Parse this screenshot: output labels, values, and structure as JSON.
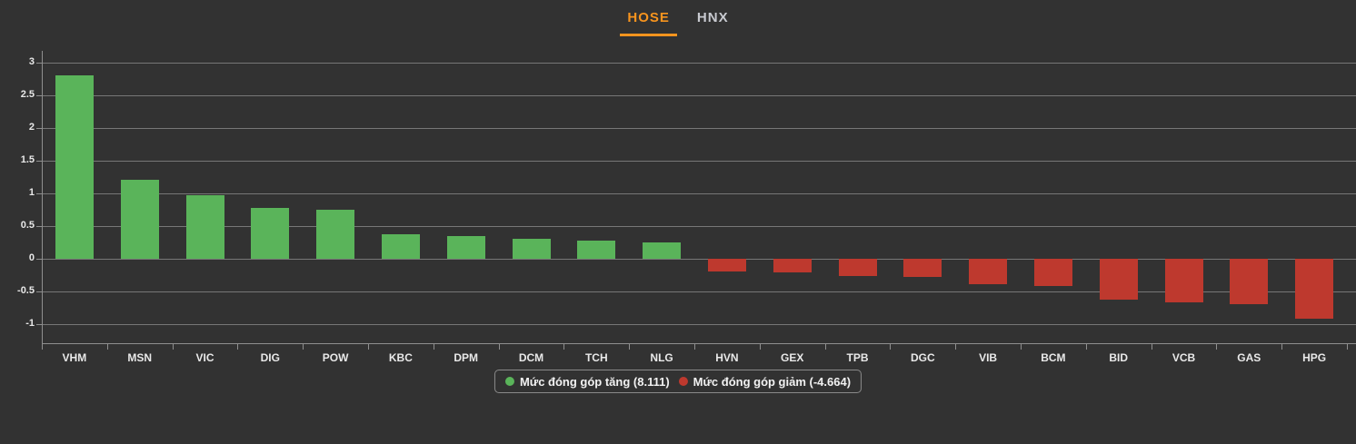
{
  "tabs": {
    "hose": "HOSE",
    "hnx": "HNX",
    "active_tab": "HOSE"
  },
  "legend": {
    "increase": "Mức đóng góp tăng (8.111)",
    "decrease": "Mức đóng góp giảm (-4.664)"
  },
  "colors": {
    "background": "#323232",
    "positive": "#5ab45a",
    "negative": "#be392e",
    "accent_orange": "#f7941e",
    "gridline": "#8f8f8f",
    "axis_text": "#e9e9e9",
    "inactive_tab_text": "#c8cad0"
  },
  "chart_data": {
    "type": "bar",
    "title": "",
    "xlabel": "",
    "ylabel": "",
    "categories": [
      "VHM",
      "MSN",
      "VIC",
      "DIG",
      "POW",
      "KBC",
      "DPM",
      "DCM",
      "TCH",
      "NLG",
      "HVN",
      "GEX",
      "TPB",
      "DGC",
      "VIB",
      "BCM",
      "BID",
      "VCB",
      "GAS",
      "HPG"
    ],
    "values": [
      2.81,
      1.21,
      0.97,
      0.78,
      0.75,
      0.37,
      0.35,
      0.31,
      0.28,
      0.25,
      -0.19,
      -0.21,
      -0.26,
      -0.28,
      -0.39,
      -0.41,
      -0.62,
      -0.67,
      -0.7,
      -0.92
    ],
    "series": [
      {
        "name": "Mức đóng góp tăng (8.111)",
        "total": 8.111,
        "color": "#5ab45a"
      },
      {
        "name": "Mức đóng góp giảm (-4.664)",
        "total": -4.664,
        "color": "#be392e"
      }
    ],
    "yticks": [
      3,
      2.5,
      2,
      1.5,
      1,
      0.5,
      0,
      -0.5,
      -1
    ],
    "ylim": [
      -1.3,
      3.2
    ],
    "grid": true,
    "legend_position": "bottom-center"
  }
}
